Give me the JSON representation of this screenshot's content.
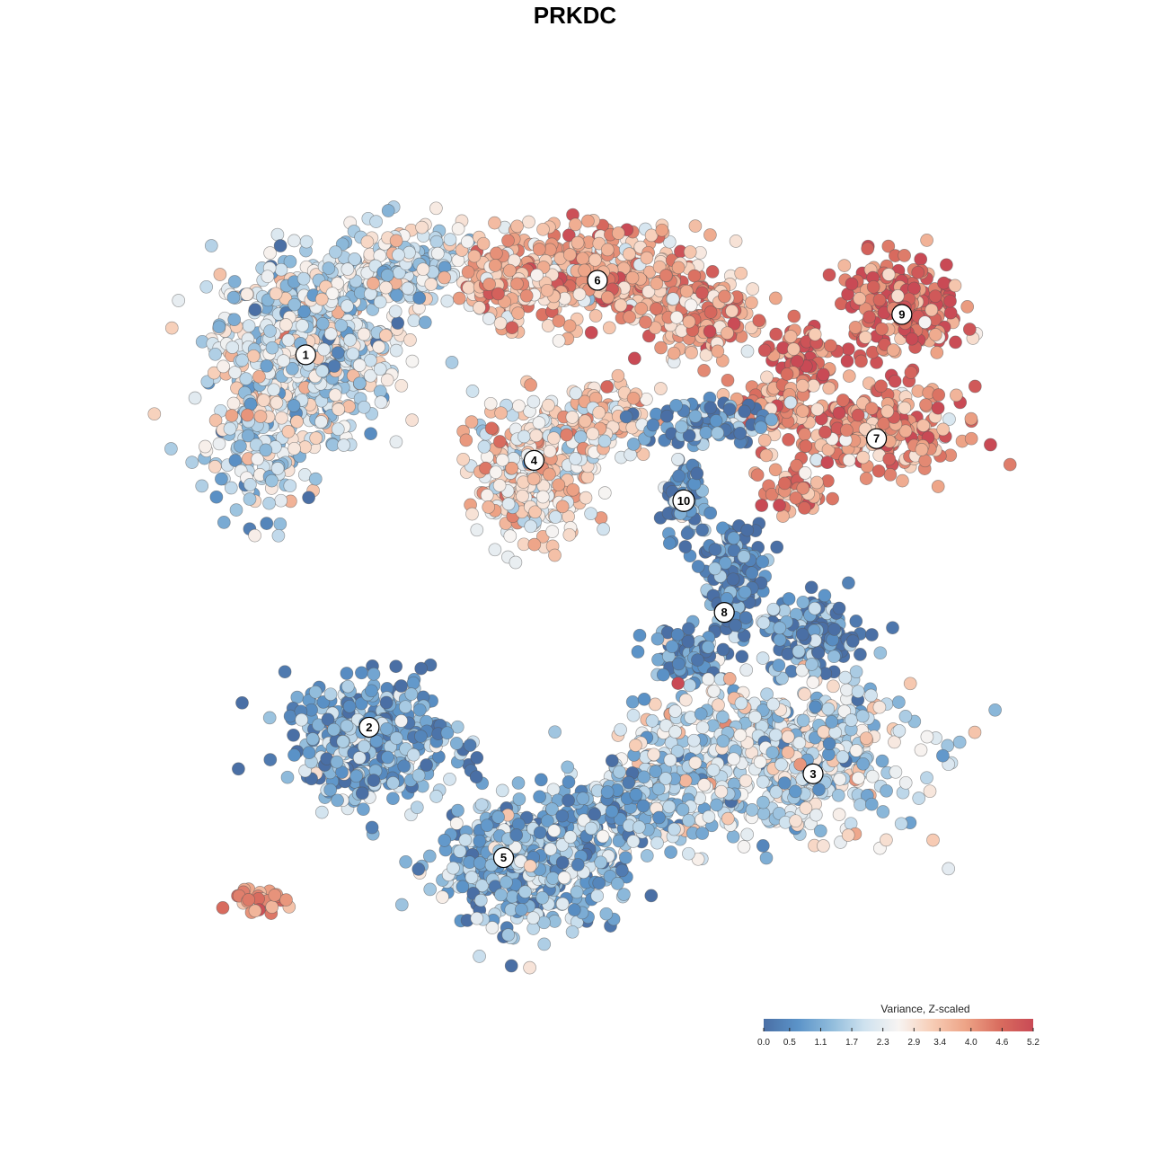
{
  "chart_data": {
    "type": "scatter",
    "title": "PRKDC",
    "xlabel": "",
    "ylabel": "",
    "grid": false,
    "legend": {
      "title": "Variance, Z-scaled",
      "placement": "bottom-right",
      "ticks": [
        "0.0",
        "0.5",
        "1.1",
        "1.7",
        "2.3",
        "2.9",
        "3.4",
        "4.0",
        "4.6",
        "5.2"
      ],
      "range": [
        0.0,
        5.2
      ],
      "colors": [
        "#4a6fa5",
        "#5b93c8",
        "#8fbbdb",
        "#cfe2ef",
        "#f7f4f2",
        "#f7cdb6",
        "#eda386",
        "#d96d5f",
        "#c94a55"
      ]
    },
    "clusters": [
      {
        "label": "1",
        "x": -11.5,
        "y": 8.2,
        "mean_value": 2.0
      },
      {
        "label": "2",
        "x": -9.0,
        "y": -3.8,
        "mean_value": 1.0
      },
      {
        "label": "3",
        "x": 8.5,
        "y": -5.3,
        "mean_value": 2.0
      },
      {
        "label": "4",
        "x": -2.5,
        "y": 4.8,
        "mean_value": 2.9
      },
      {
        "label": "5",
        "x": -3.7,
        "y": -8.0,
        "mean_value": 1.2
      },
      {
        "label": "6",
        "x": 0.0,
        "y": 10.6,
        "mean_value": 3.7
      },
      {
        "label": "7",
        "x": 11.0,
        "y": 5.5,
        "mean_value": 4.0
      },
      {
        "label": "8",
        "x": 5.0,
        "y": -0.1,
        "mean_value": 0.4
      },
      {
        "label": "9",
        "x": 12.0,
        "y": 9.5,
        "mean_value": 4.6
      },
      {
        "label": "10",
        "x": 3.4,
        "y": 3.5,
        "mean_value": 0.6
      }
    ],
    "xlim": [
      -17,
      17
    ],
    "ylim": [
      -12.5,
      15
    ]
  }
}
